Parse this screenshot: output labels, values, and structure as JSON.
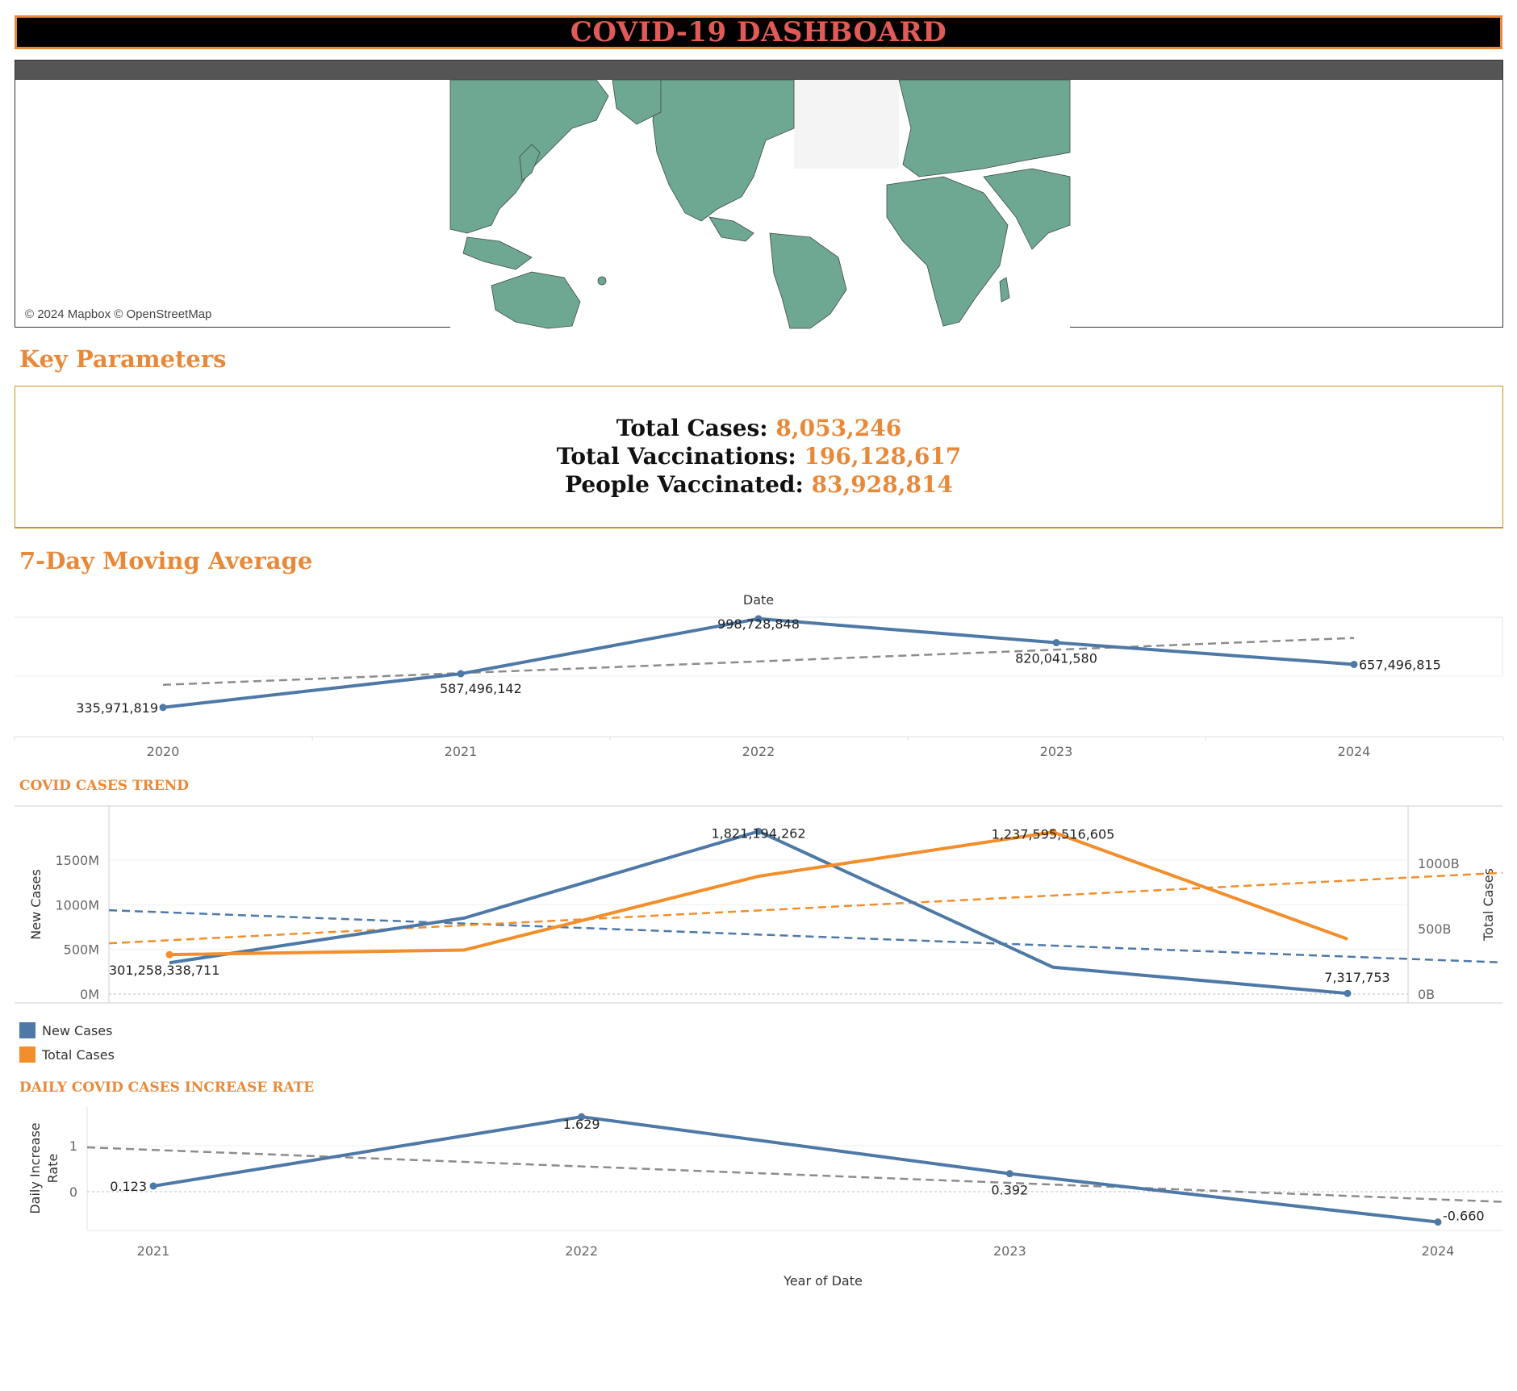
{
  "header": {
    "title": "COVID-19 DASHBOARD"
  },
  "map": {
    "credit": "© 2024 Mapbox © OpenStreetMap"
  },
  "key_parameters": {
    "title": "Key Parameters",
    "total_cases_label": "Total Cases:",
    "total_cases_value": "8,053,246",
    "total_vaccinations_label": "Total Vaccinations:",
    "total_vaccinations_value": "196,128,617",
    "people_vaccinated_label": "People Vaccinated:",
    "people_vaccinated_value": "83,928,814"
  },
  "moving_average": {
    "title": "7-Day Moving Average"
  },
  "cases_trend": {
    "title": "COVID CASES TREND"
  },
  "increase_rate": {
    "title": "DAILY COVID CASES INCREASE RATE"
  },
  "colors": {
    "blue": "#4e79a7",
    "orange": "#f28e2b",
    "trend_gray": "#8c8c8c",
    "accent": "#e8893a",
    "title_red": "#e05a57"
  },
  "chart_data": [
    {
      "type": "line",
      "xlabel": "Date",
      "ylabel": "",
      "categories": [
        "2020",
        "2021",
        "2022",
        "2023",
        "2024"
      ],
      "series": [
        {
          "values": [
            335971819,
            587496142,
            998728848,
            820041580,
            657496815
          ]
        }
      ],
      "value_labels": [
        "335,971,819",
        "587,496,142",
        "998,728,848",
        "820,041,580",
        "657,496,815"
      ],
      "trendline": true,
      "grid": true
    },
    {
      "type": "line",
      "xlabel": "",
      "ylabel": "New Cases",
      "ylabel_right": "Total Cases",
      "x": [
        2021.0,
        2021.75,
        2022.5,
        2023.25,
        2024.0
      ],
      "series": [
        {
          "name": "New Cases",
          "axis": "left",
          "values": [
            350000000,
            850000000,
            1821194262,
            300000000,
            7317753
          ]
        },
        {
          "name": "Total Cases",
          "axis": "right",
          "values": [
            301258338711,
            336000000000,
            900000000000,
            1237595516605,
            420000000000
          ]
        }
      ],
      "left_ticks": [
        "0M",
        "500M",
        "1000M",
        "1500M"
      ],
      "right_ticks": [
        "0B",
        "500B",
        "1000B"
      ],
      "ylim_left": [
        0,
        2050000000
      ],
      "ylim_right": [
        0,
        1400000000000
      ],
      "labels": {
        "new_max": "1,821,194,262",
        "new_min": "7,317,753",
        "total_max": "1,237,595,516,605",
        "total_min": "301,258,338,711"
      },
      "legend": [
        {
          "name": "New Cases"
        },
        {
          "name": "Total Cases"
        }
      ],
      "trendline": true
    },
    {
      "type": "line",
      "xlabel": "Year of Date",
      "ylabel": "Daily Increase Rate",
      "categories": [
        "2021",
        "2022",
        "2023",
        "2024"
      ],
      "series": [
        {
          "values": [
            0.123,
            1.629,
            0.392,
            -0.66
          ]
        }
      ],
      "value_labels": [
        "0.123",
        "1.629",
        "0.392",
        "-0.660"
      ],
      "y_ticks": [
        "0",
        "1"
      ],
      "ylim": [
        -0.8,
        1.8
      ],
      "trendline": true
    }
  ]
}
